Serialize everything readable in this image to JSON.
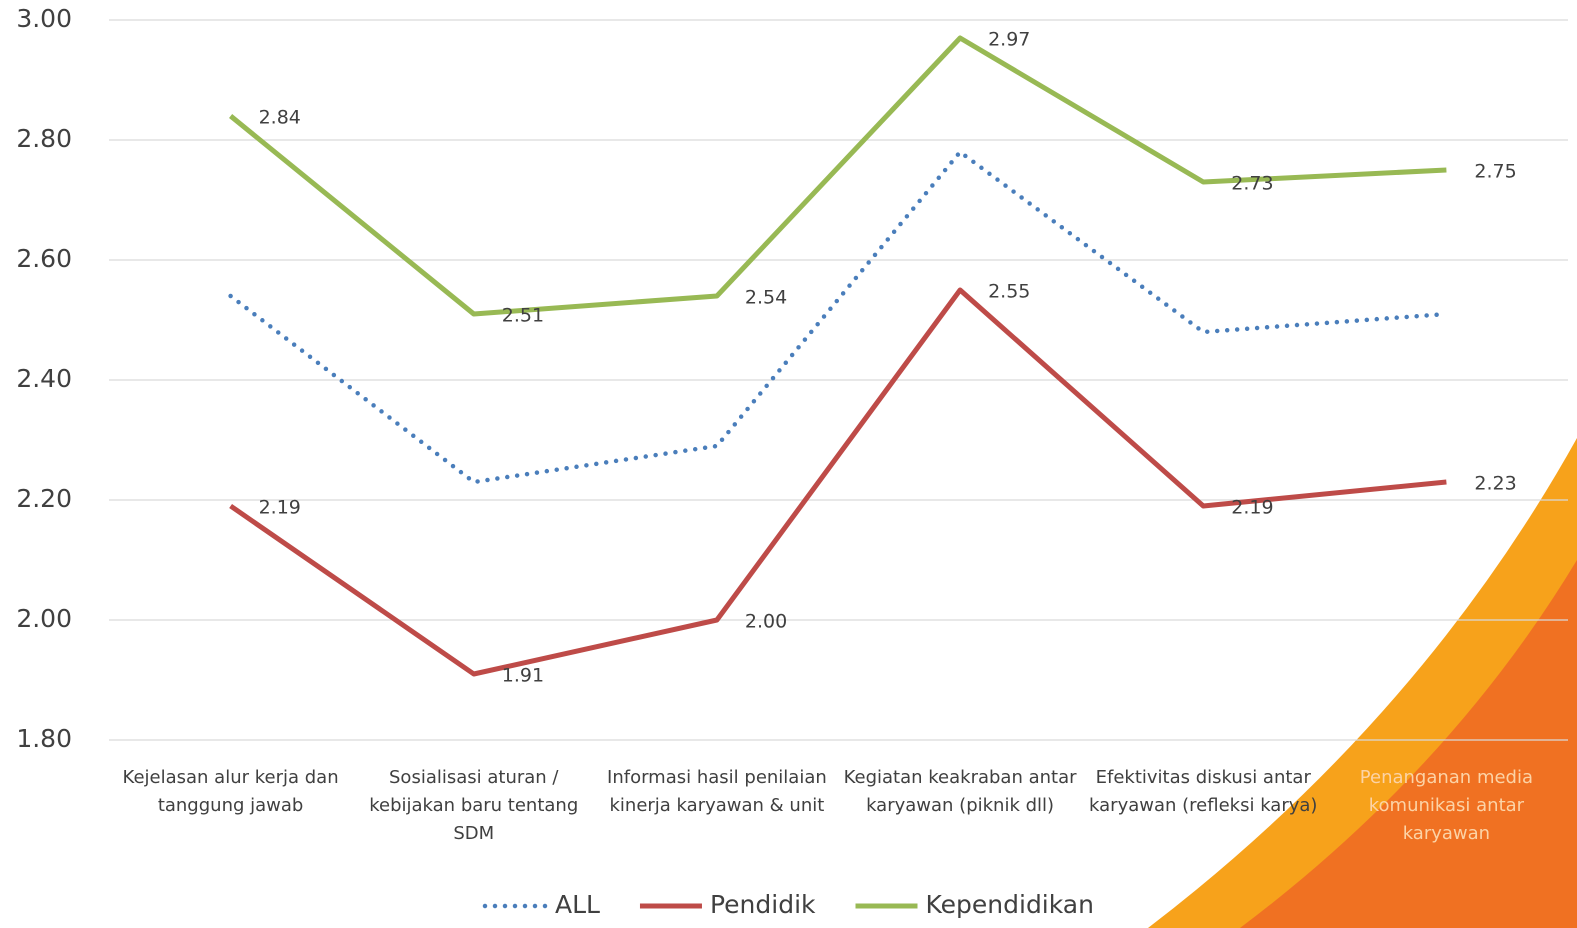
{
  "chart_data": {
    "type": "line",
    "categories": [
      "Kejelasan alur kerja dan tanggung jawab",
      "Sosialisasi aturan / kebijakan baru tentang SDM",
      "Informasi hasil penilaian kinerja karyawan & unit",
      "Kegiatan keakraban antar karyawan (piknik dll)",
      "Efektivitas diskusi antar karyawan (refleksi karya)",
      "Penanganan media komunikasi antar karyawan"
    ],
    "series": [
      {
        "name": "ALL",
        "color": "#4a7ebb",
        "dash": "dotted",
        "values": [
          2.54,
          2.23,
          2.29,
          2.78,
          2.48,
          2.51
        ]
      },
      {
        "name": "Pendidik",
        "color": "#be4b48",
        "values": [
          2.19,
          1.91,
          2.0,
          2.55,
          2.19,
          2.23
        ],
        "value_labels": [
          "2.19",
          "1.91",
          "2.00",
          "2.55",
          "2.19",
          "2.23"
        ]
      },
      {
        "name": "Kependidikan",
        "color": "#98b954",
        "values": [
          2.84,
          2.51,
          2.54,
          2.97,
          2.73,
          2.75
        ],
        "value_labels": [
          "2.84",
          "2.51",
          "2.54",
          "2.97",
          "2.73",
          "2.75"
        ]
      }
    ],
    "ylim": [
      1.8,
      3.0
    ],
    "yticks": [
      {
        "value": 1.8,
        "label": "1.80"
      },
      {
        "value": 2.0,
        "label": "2.00"
      },
      {
        "value": 2.2,
        "label": "2.20"
      },
      {
        "value": 2.4,
        "label": "2.40"
      },
      {
        "value": 2.6,
        "label": "2.60"
      },
      {
        "value": 2.8,
        "label": "2.80"
      },
      {
        "value": 3.0,
        "label": "3.00"
      }
    ],
    "grid": true,
    "legend": "bottom"
  }
}
